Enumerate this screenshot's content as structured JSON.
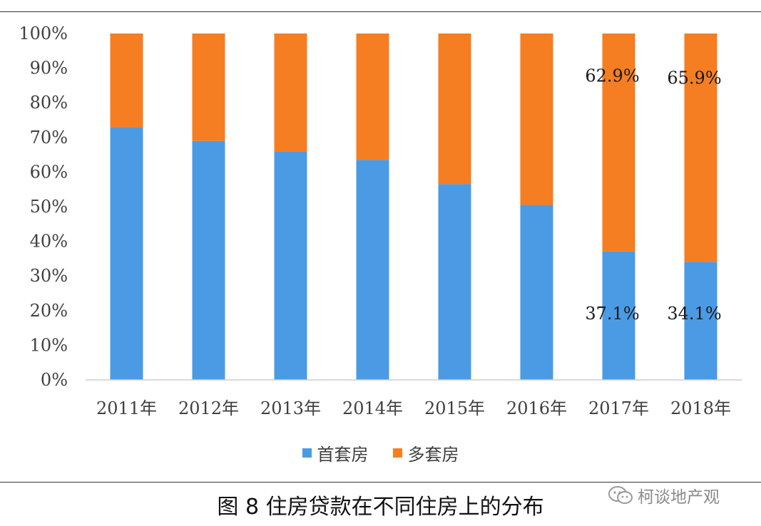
{
  "chart_data": {
    "type": "bar",
    "stacked": true,
    "percent_stacked": true,
    "categories": [
      "2011年",
      "2012年",
      "2013年",
      "2014年",
      "2015年",
      "2016年",
      "2017年",
      "2018年"
    ],
    "series": [
      {
        "name": "首套房",
        "color": "#4a9be4",
        "values": [
          73,
          69,
          66,
          63.5,
          56.5,
          50.5,
          37.1,
          34.1
        ]
      },
      {
        "name": "多套房",
        "color": "#f57e22",
        "values": [
          27,
          31,
          34,
          36.5,
          43.5,
          49.5,
          62.9,
          65.9
        ]
      }
    ],
    "y_ticks": [
      "0%",
      "10%",
      "20%",
      "30%",
      "40%",
      "50%",
      "60%",
      "70%",
      "80%",
      "90%",
      "100%"
    ],
    "ylim": [
      0,
      100
    ],
    "grid": false,
    "legend_position": "bottom",
    "data_labels": [
      {
        "category": "2017年",
        "series": "首套房",
        "text": "37.1%"
      },
      {
        "category": "2017年",
        "series": "多套房",
        "text": "62.9%"
      },
      {
        "category": "2018年",
        "series": "首套房",
        "text": "34.1%"
      },
      {
        "category": "2018年",
        "series": "多套房",
        "text": "65.9%"
      }
    ]
  },
  "legend": {
    "items": [
      {
        "label": "首套房",
        "color": "#4a9be4"
      },
      {
        "label": "多套房",
        "color": "#f57e22"
      }
    ]
  },
  "caption": "图 8 住房贷款在不同住房上的分布",
  "watermark": {
    "text": "柯谈地产观",
    "icon": "wechat-icon"
  }
}
